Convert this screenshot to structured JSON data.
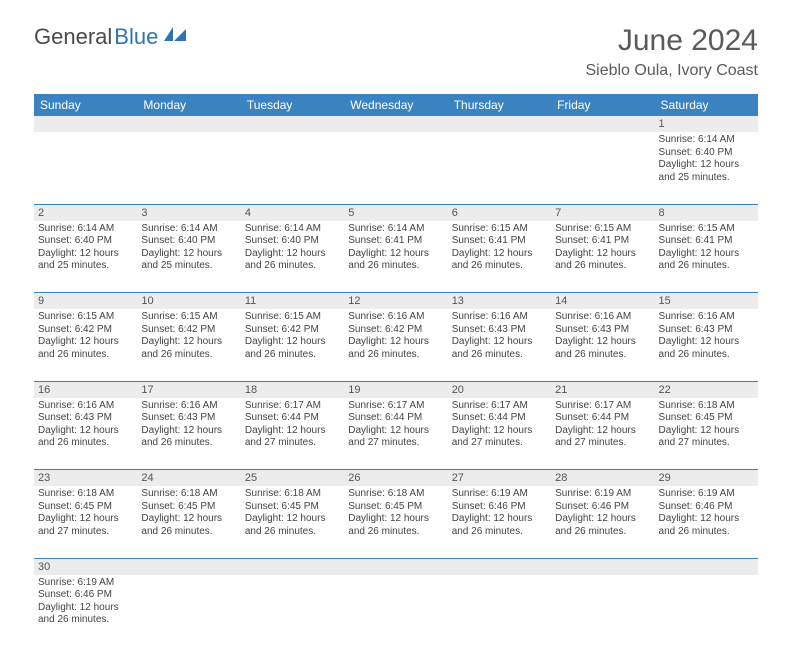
{
  "brand": {
    "part1": "General",
    "part2": "Blue"
  },
  "title": "June 2024",
  "location": "Sieblo Oula, Ivory Coast",
  "colors": {
    "header_bg": "#3b83c0",
    "header_text": "#ffffff",
    "daynum_bg": "#ececec",
    "row_border": "#3b83c0",
    "brand_gray": "#4a4a4a",
    "brand_blue": "#2e74b5",
    "text": "#444444"
  },
  "day_labels": [
    "Sunday",
    "Monday",
    "Tuesday",
    "Wednesday",
    "Thursday",
    "Friday",
    "Saturday"
  ],
  "weeks": [
    {
      "nums": [
        "",
        "",
        "",
        "",
        "",
        "",
        "1"
      ],
      "cells": [
        "",
        "",
        "",
        "",
        "",
        "",
        "Sunrise: 6:14 AM\nSunset: 6:40 PM\nDaylight: 12 hours and 25 minutes."
      ]
    },
    {
      "nums": [
        "2",
        "3",
        "4",
        "5",
        "6",
        "7",
        "8"
      ],
      "cells": [
        "Sunrise: 6:14 AM\nSunset: 6:40 PM\nDaylight: 12 hours and 25 minutes.",
        "Sunrise: 6:14 AM\nSunset: 6:40 PM\nDaylight: 12 hours and 25 minutes.",
        "Sunrise: 6:14 AM\nSunset: 6:40 PM\nDaylight: 12 hours and 26 minutes.",
        "Sunrise: 6:14 AM\nSunset: 6:41 PM\nDaylight: 12 hours and 26 minutes.",
        "Sunrise: 6:15 AM\nSunset: 6:41 PM\nDaylight: 12 hours and 26 minutes.",
        "Sunrise: 6:15 AM\nSunset: 6:41 PM\nDaylight: 12 hours and 26 minutes.",
        "Sunrise: 6:15 AM\nSunset: 6:41 PM\nDaylight: 12 hours and 26 minutes."
      ]
    },
    {
      "nums": [
        "9",
        "10",
        "11",
        "12",
        "13",
        "14",
        "15"
      ],
      "cells": [
        "Sunrise: 6:15 AM\nSunset: 6:42 PM\nDaylight: 12 hours and 26 minutes.",
        "Sunrise: 6:15 AM\nSunset: 6:42 PM\nDaylight: 12 hours and 26 minutes.",
        "Sunrise: 6:15 AM\nSunset: 6:42 PM\nDaylight: 12 hours and 26 minutes.",
        "Sunrise: 6:16 AM\nSunset: 6:42 PM\nDaylight: 12 hours and 26 minutes.",
        "Sunrise: 6:16 AM\nSunset: 6:43 PM\nDaylight: 12 hours and 26 minutes.",
        "Sunrise: 6:16 AM\nSunset: 6:43 PM\nDaylight: 12 hours and 26 minutes.",
        "Sunrise: 6:16 AM\nSunset: 6:43 PM\nDaylight: 12 hours and 26 minutes."
      ]
    },
    {
      "nums": [
        "16",
        "17",
        "18",
        "19",
        "20",
        "21",
        "22"
      ],
      "cells": [
        "Sunrise: 6:16 AM\nSunset: 6:43 PM\nDaylight: 12 hours and 26 minutes.",
        "Sunrise: 6:16 AM\nSunset: 6:43 PM\nDaylight: 12 hours and 26 minutes.",
        "Sunrise: 6:17 AM\nSunset: 6:44 PM\nDaylight: 12 hours and 27 minutes.",
        "Sunrise: 6:17 AM\nSunset: 6:44 PM\nDaylight: 12 hours and 27 minutes.",
        "Sunrise: 6:17 AM\nSunset: 6:44 PM\nDaylight: 12 hours and 27 minutes.",
        "Sunrise: 6:17 AM\nSunset: 6:44 PM\nDaylight: 12 hours and 27 minutes.",
        "Sunrise: 6:18 AM\nSunset: 6:45 PM\nDaylight: 12 hours and 27 minutes."
      ]
    },
    {
      "nums": [
        "23",
        "24",
        "25",
        "26",
        "27",
        "28",
        "29"
      ],
      "cells": [
        "Sunrise: 6:18 AM\nSunset: 6:45 PM\nDaylight: 12 hours and 27 minutes.",
        "Sunrise: 6:18 AM\nSunset: 6:45 PM\nDaylight: 12 hours and 26 minutes.",
        "Sunrise: 6:18 AM\nSunset: 6:45 PM\nDaylight: 12 hours and 26 minutes.",
        "Sunrise: 6:18 AM\nSunset: 6:45 PM\nDaylight: 12 hours and 26 minutes.",
        "Sunrise: 6:19 AM\nSunset: 6:46 PM\nDaylight: 12 hours and 26 minutes.",
        "Sunrise: 6:19 AM\nSunset: 6:46 PM\nDaylight: 12 hours and 26 minutes.",
        "Sunrise: 6:19 AM\nSunset: 6:46 PM\nDaylight: 12 hours and 26 minutes."
      ]
    },
    {
      "nums": [
        "30",
        "",
        "",
        "",
        "",
        "",
        ""
      ],
      "cells": [
        "Sunrise: 6:19 AM\nSunset: 6:46 PM\nDaylight: 12 hours and 26 minutes.",
        "",
        "",
        "",
        "",
        "",
        ""
      ]
    }
  ]
}
